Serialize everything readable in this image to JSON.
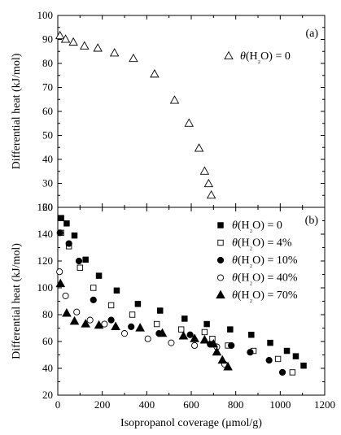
{
  "chart_data": [
    {
      "type": "scatter",
      "panel_label": "(a)",
      "xlabel": "",
      "ylabel": "Differential heat (kJ/mol)",
      "xlim": [
        0,
        1200
      ],
      "ylim": [
        20,
        100
      ],
      "yticks": [
        20,
        30,
        40,
        50,
        60,
        70,
        80,
        90,
        100
      ],
      "legend_position": "top-right",
      "series": [
        {
          "name": "θ(H₂O) = 0",
          "marker": "open-triangle",
          "x": [
            10,
            35,
            70,
            120,
            180,
            255,
            340,
            435,
            525,
            590,
            635,
            660,
            678,
            690
          ],
          "y": [
            91.5,
            90,
            88.8,
            87.2,
            86.3,
            84.3,
            82,
            75.5,
            64.6,
            55,
            44.6,
            35,
            29.8,
            25
          ]
        }
      ]
    },
    {
      "type": "scatter",
      "panel_label": "(b)",
      "xlabel": "Isopropanol coverage (μmol/g)",
      "ylabel": "Differential heat (kJ/mol)",
      "xlim": [
        0,
        1200
      ],
      "ylim": [
        20,
        160
      ],
      "xticks": [
        0,
        200,
        400,
        600,
        800,
        1000,
        1200
      ],
      "yticks": [
        20,
        40,
        60,
        80,
        100,
        120,
        140,
        160
      ],
      "legend_position": "top-right",
      "series": [
        {
          "name": "θ(H₂O) = 0",
          "marker": "filled-square",
          "x": [
            15,
            40,
            75,
            125,
            185,
            265,
            360,
            460,
            570,
            670,
            775,
            870,
            955,
            1030,
            1070,
            1105
          ],
          "y": [
            152,
            148,
            139,
            121,
            109,
            98,
            88,
            83,
            77,
            73,
            69,
            65,
            59,
            53,
            49,
            42
          ]
        },
        {
          "name": "θ(H₂O) = 4%",
          "marker": "open-square",
          "x": [
            15,
            50,
            100,
            160,
            240,
            335,
            445,
            555,
            660,
            695,
            765,
            880,
            990,
            1055
          ],
          "y": [
            141,
            131,
            115,
            100,
            87,
            80,
            73,
            69,
            67,
            62,
            57,
            53,
            47,
            37
          ]
        },
        {
          "name": "θ(H₂O) = 10%",
          "marker": "filled-circle",
          "x": [
            10,
            50,
            95,
            160,
            240,
            330,
            455,
            595,
            685,
            780,
            865,
            950,
            1010
          ],
          "y": [
            141,
            133,
            120,
            91,
            76,
            71,
            66,
            65,
            58,
            57,
            52,
            46,
            37
          ]
        },
        {
          "name": "θ(H₂O) = 40%",
          "marker": "open-circle",
          "x": [
            8,
            35,
            85,
            145,
            210,
            300,
            405,
            510,
            615,
            715,
            750
          ],
          "y": [
            112,
            94,
            82,
            76,
            73,
            66,
            62,
            59,
            57,
            56,
            43
          ]
        },
        {
          "name": "θ(H₂O) = 70%",
          "marker": "filled-triangle",
          "x": [
            12,
            40,
            75,
            125,
            185,
            260,
            370,
            470,
            565,
            615,
            660,
            700,
            715,
            740,
            765
          ],
          "y": [
            103,
            81,
            75,
            73,
            72,
            71,
            70,
            66,
            64,
            62,
            61,
            58,
            52,
            46,
            41
          ]
        }
      ]
    }
  ]
}
